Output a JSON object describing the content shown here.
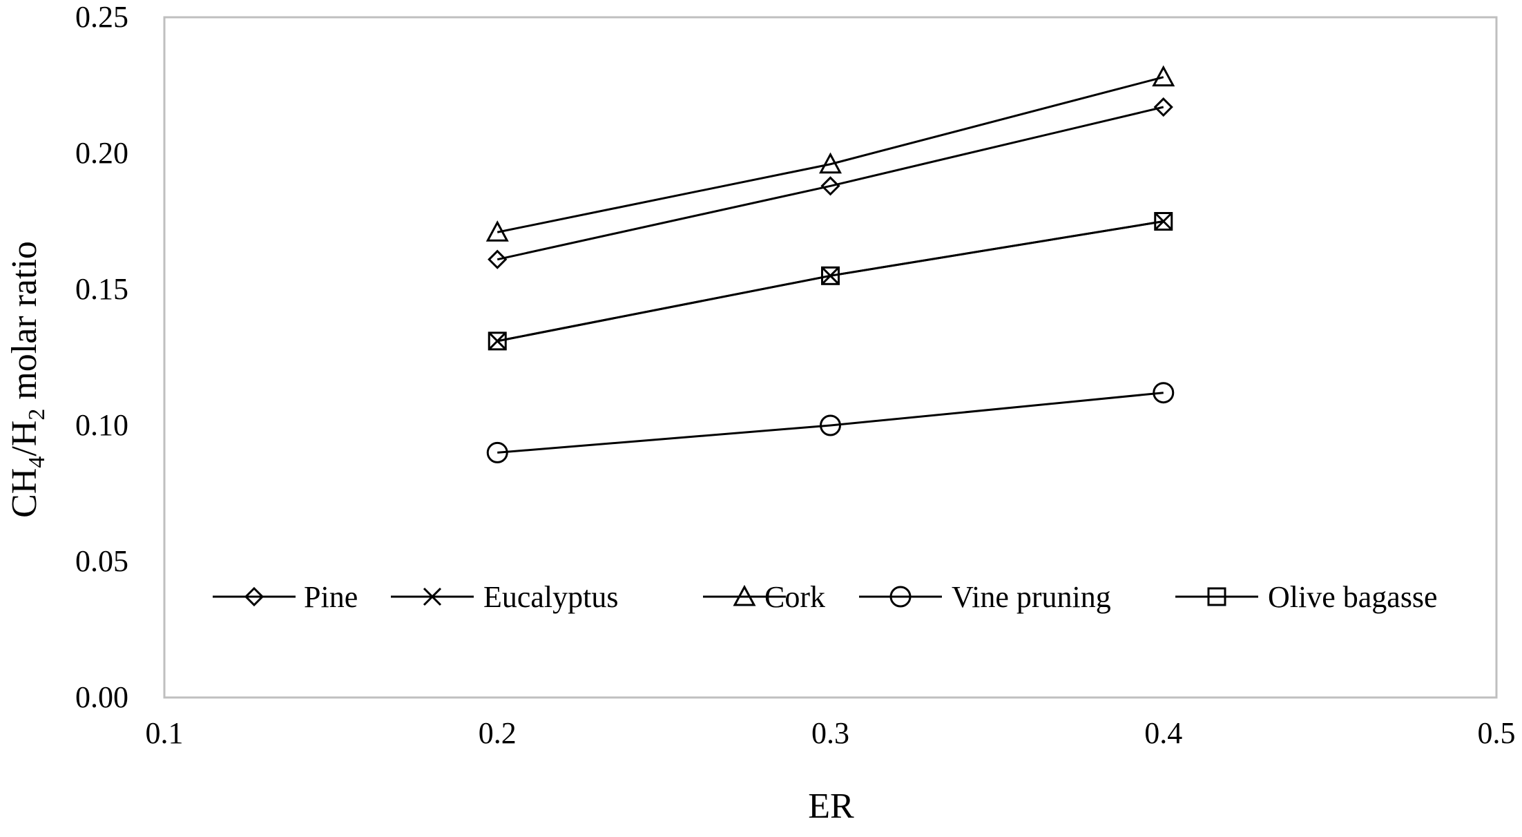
{
  "chart_data": {
    "type": "line",
    "xlabel": "ER",
    "ylabel": {
      "parts": [
        {
          "text": "CH",
          "sub": false
        },
        {
          "text": "4",
          "sub": true
        },
        {
          "text": "/H",
          "sub": false
        },
        {
          "text": "2",
          "sub": true
        },
        {
          "text": " molar ratio",
          "sub": false
        }
      ]
    },
    "xlim": [
      0.1,
      0.5
    ],
    "ylim": [
      0.0,
      0.25
    ],
    "xticks": [
      "0.1",
      "0.2",
      "0.3",
      "0.4",
      "0.5"
    ],
    "yticks": [
      "0.00",
      "0.05",
      "0.10",
      "0.15",
      "0.20",
      "0.25"
    ],
    "xtick_values": [
      0.1,
      0.2,
      0.3,
      0.4,
      0.5
    ],
    "ytick_values": [
      0.0,
      0.05,
      0.1,
      0.15,
      0.2,
      0.25
    ],
    "grid": false,
    "legend_position": "bottom-inside",
    "series": [
      {
        "name": "Pine",
        "marker": "diamond",
        "x": [
          0.2,
          0.3,
          0.4
        ],
        "y": [
          0.161,
          0.188,
          0.217
        ]
      },
      {
        "name": "Eucalyptus",
        "marker": "x",
        "x": [
          0.2,
          0.3,
          0.4
        ],
        "y": [
          0.131,
          0.155,
          0.175
        ]
      },
      {
        "name": "Cork",
        "marker": "triangle",
        "x": [
          0.2,
          0.3,
          0.4
        ],
        "y": [
          0.171,
          0.196,
          0.228
        ]
      },
      {
        "name": "Vine pruning",
        "marker": "circle",
        "x": [
          0.2,
          0.3,
          0.4
        ],
        "y": [
          0.09,
          0.1,
          0.112
        ]
      },
      {
        "name": "Olive bagasse",
        "marker": "square",
        "x": [
          0.2,
          0.3,
          0.4
        ],
        "y": [
          0.131,
          0.155,
          0.175
        ]
      }
    ],
    "colors": {
      "line": "#000000",
      "frame": "#bfbfbf",
      "background": "#ffffff"
    }
  }
}
